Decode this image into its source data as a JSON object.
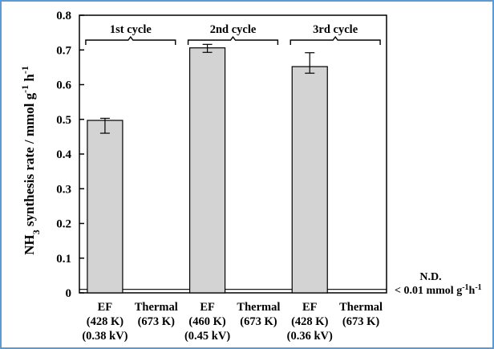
{
  "chart_data": {
    "type": "bar",
    "ylabel": {
      "main": "NH",
      "sub": "3",
      "rest": " synthesis rate / mmol g",
      "sup1": "-1",
      "unit2": " h",
      "sup2": "-1"
    },
    "ylim": [
      0,
      0.8
    ],
    "yticks": [
      "0",
      "0.1",
      "0.2",
      "0.3",
      "0.4",
      "0.5",
      "0.6",
      "0.7",
      "0.8"
    ],
    "grid": false,
    "bar_color": "#d3d3d3",
    "categories": [
      {
        "lines": [
          "EF",
          "(428 K)",
          "(0.38 kV)"
        ]
      },
      {
        "lines": [
          "Thermal",
          "(673 K)"
        ]
      },
      {
        "lines": [
          "EF",
          "(460 K)",
          "(0.45 kV)"
        ]
      },
      {
        "lines": [
          "Thermal",
          "(673 K)"
        ]
      },
      {
        "lines": [
          "EF",
          "(428 K)",
          "(0.36 kV)"
        ]
      },
      {
        "lines": [
          "Thermal",
          "(673 K)"
        ]
      }
    ],
    "values": [
      0.497,
      null,
      0.706,
      null,
      0.652,
      null
    ],
    "error_low": [
      0.46,
      null,
      0.693,
      null,
      0.633,
      null
    ],
    "error_high": [
      0.503,
      null,
      0.716,
      null,
      0.692,
      null
    ],
    "cycles": [
      {
        "label": "1st cycle",
        "from": 0,
        "to": 1
      },
      {
        "label": "2nd cycle",
        "from": 2,
        "to": 3
      },
      {
        "label": "3rd cycle",
        "from": 4,
        "to": 5
      }
    ],
    "detection_limit": {
      "value": 0.01,
      "label": "N.D.",
      "text_main": "< 0.01 mmol g",
      "sup1": "-1",
      "unit2": "h",
      "sup2": "-1"
    }
  }
}
